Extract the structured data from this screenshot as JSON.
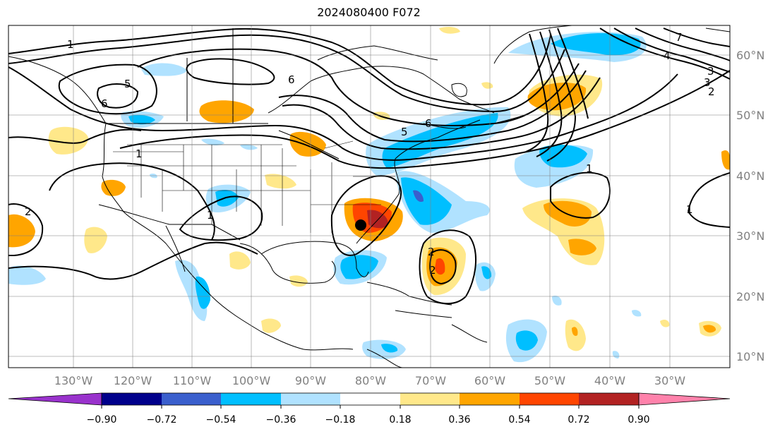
{
  "title": "2024080400 F072",
  "map": {
    "lon_labels": [
      "130°W",
      "120°W",
      "110°W",
      "100°W",
      "90°W",
      "80°W",
      "70°W",
      "60°W",
      "50°W",
      "40°W",
      "30°W"
    ],
    "lat_labels": [
      "60°N",
      "50°N",
      "40°N",
      "30°N",
      "20°N",
      "10°N"
    ],
    "grid": true,
    "center_marker": {
      "lon": "81°W",
      "lat": "32°N"
    }
  },
  "contour_labels": [
    "1",
    "1",
    "1",
    "1",
    "1",
    "2",
    "2",
    "2",
    "2",
    "3",
    "3",
    "4",
    "5",
    "5",
    "6",
    "6",
    "6",
    "7"
  ],
  "colorbar": {
    "ticks": [
      "−0.90",
      "−0.72",
      "−0.54",
      "−0.36",
      "−0.18",
      "0.18",
      "0.36",
      "0.54",
      "0.72",
      "0.90"
    ],
    "colors": [
      "#9932cc",
      "#00008b",
      "#3a5fcd",
      "#00bfff",
      "#b0e2ff",
      "#ffffff",
      "#ffe88a",
      "#ffa500",
      "#ff4500",
      "#b22222",
      "#ff82ab"
    ]
  }
}
